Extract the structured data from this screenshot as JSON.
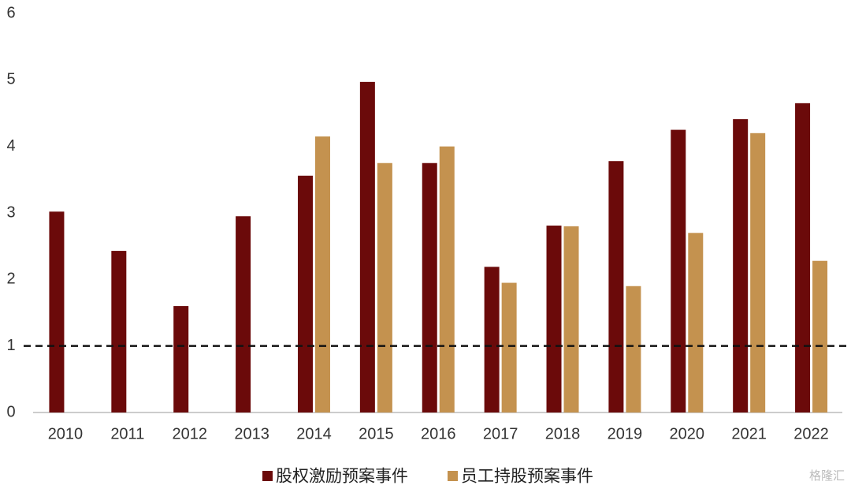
{
  "chart_data": {
    "type": "bar",
    "categories": [
      "2010",
      "2011",
      "2012",
      "2013",
      "2014",
      "2015",
      "2016",
      "2017",
      "2018",
      "2019",
      "2020",
      "2021",
      "2022"
    ],
    "series": [
      {
        "name": "股权激励预案事件",
        "color": "#6b0a0a",
        "values": [
          3.02,
          2.43,
          1.6,
          2.95,
          3.56,
          4.97,
          3.75,
          2.19,
          2.81,
          3.78,
          4.25,
          4.41,
          4.65
        ]
      },
      {
        "name": "员工持股预案事件",
        "color": "#c4924f",
        "values": [
          null,
          null,
          null,
          null,
          4.15,
          3.75,
          4.0,
          1.95,
          2.8,
          1.9,
          2.7,
          4.2,
          2.28
        ]
      }
    ],
    "ylim": [
      0,
      6
    ],
    "yticks": [
      0,
      1,
      2,
      3,
      4,
      5,
      6
    ],
    "reference_line": 1,
    "grid": false,
    "legend": "bottom",
    "watermark": "格隆汇"
  }
}
